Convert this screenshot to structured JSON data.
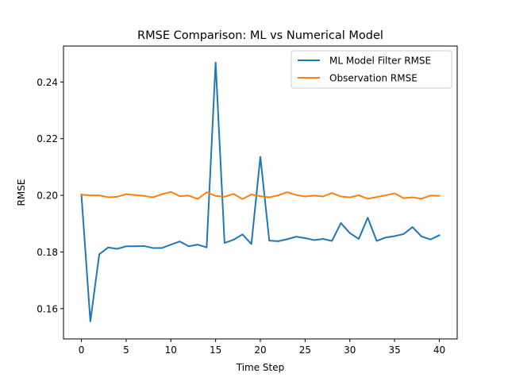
{
  "chart_data": {
    "type": "line",
    "title": "RMSE Comparison: ML vs Numerical Model",
    "xlabel": "Time Step",
    "ylabel": "RMSE",
    "xlim": [
      -2,
      42
    ],
    "ylim": [
      0.1493,
      0.2527
    ],
    "xticks": [
      0,
      5,
      10,
      15,
      20,
      25,
      30,
      35,
      40
    ],
    "xtick_labels": [
      "0",
      "5",
      "10",
      "15",
      "20",
      "25",
      "30",
      "35",
      "40"
    ],
    "yticks": [
      0.16,
      0.18,
      0.2,
      0.22,
      0.24
    ],
    "ytick_labels": [
      "0.16",
      "0.18",
      "0.20",
      "0.22",
      "0.24"
    ],
    "grid": false,
    "legend_position": "top-right",
    "x": [
      0,
      1,
      2,
      3,
      4,
      5,
      6,
      7,
      8,
      9,
      10,
      11,
      12,
      13,
      14,
      15,
      16,
      17,
      18,
      19,
      20,
      21,
      22,
      23,
      24,
      25,
      26,
      27,
      28,
      29,
      30,
      31,
      32,
      33,
      34,
      35,
      36,
      37,
      38,
      39,
      40
    ],
    "series": [
      {
        "name": "ML Model Filter RMSE",
        "color": "#1f77b4",
        "values": [
          0.2003,
          0.1555,
          0.1792,
          0.1816,
          0.1811,
          0.182,
          0.182,
          0.1821,
          0.1814,
          0.1814,
          0.1826,
          0.1837,
          0.182,
          0.1826,
          0.1816,
          0.2469,
          0.1832,
          0.1843,
          0.1862,
          0.1828,
          0.2136,
          0.184,
          0.1838,
          0.1845,
          0.1854,
          0.1849,
          0.1842,
          0.1846,
          0.1839,
          0.1902,
          0.1867,
          0.1846,
          0.1921,
          0.1839,
          0.1851,
          0.1856,
          0.1863,
          0.1888,
          0.1855,
          0.1844,
          0.1859
        ]
      },
      {
        "name": "Observation RMSE",
        "color": "#ff7f0e",
        "values": [
          0.2002,
          0.2,
          0.2,
          0.1993,
          0.1995,
          0.2004,
          0.2001,
          0.1998,
          0.1993,
          0.2004,
          0.2012,
          0.1997,
          0.1999,
          0.1987,
          0.2011,
          0.1998,
          0.1995,
          0.2005,
          0.1987,
          0.2003,
          0.1997,
          0.1993,
          0.2,
          0.2011,
          0.2001,
          0.1996,
          0.1999,
          0.1996,
          0.2008,
          0.1996,
          0.1993,
          0.2,
          0.1988,
          0.1994,
          0.2,
          0.2007,
          0.199,
          0.1993,
          0.1988,
          0.1999,
          0.1998
        ]
      }
    ]
  }
}
